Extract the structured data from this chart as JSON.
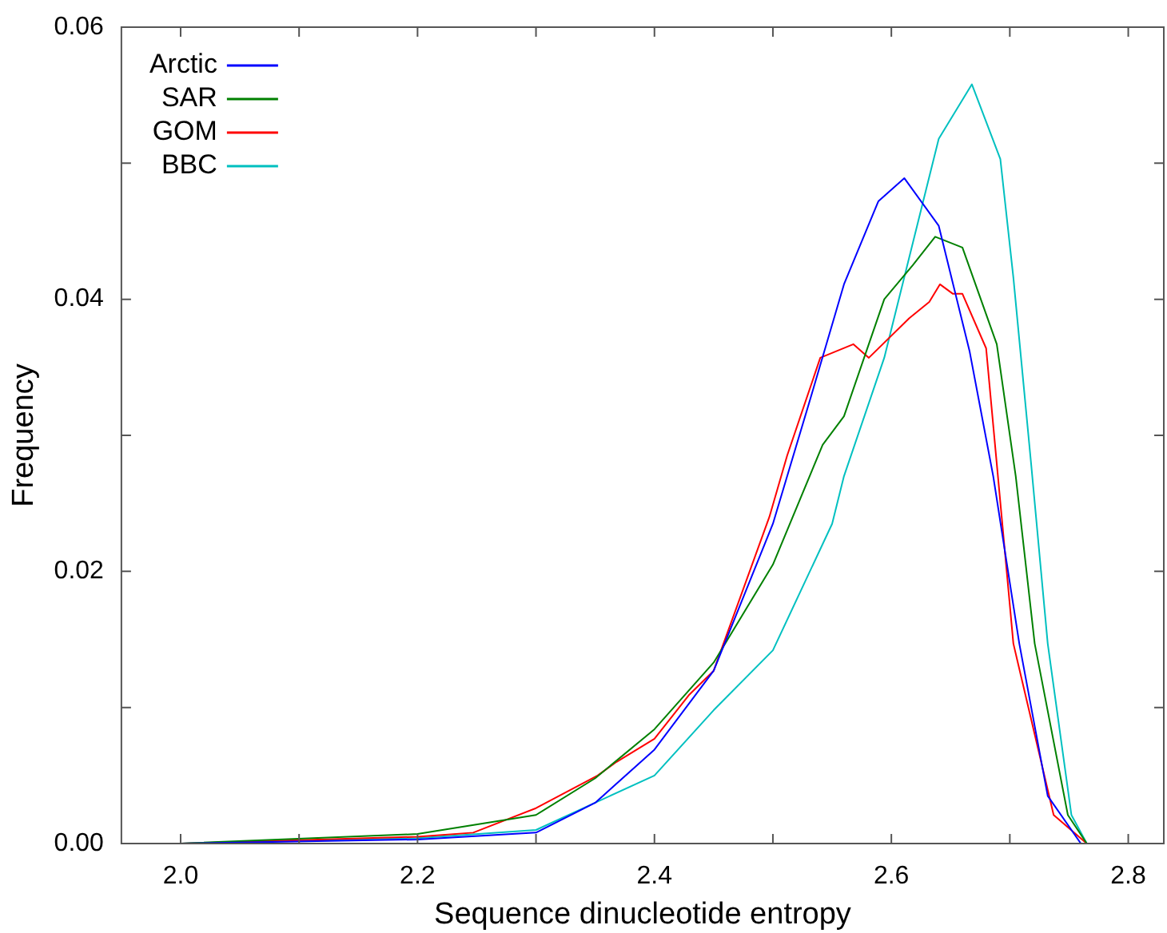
{
  "chart_data": {
    "type": "line",
    "xlabel": "Sequence dinucleotide entropy",
    "ylabel": "Frequency",
    "xlim": [
      1.95,
      2.83
    ],
    "ylim": [
      0,
      0.06
    ],
    "xticks": [
      {
        "value": 2.0,
        "label": "2.0"
      },
      {
        "value": 2.1,
        "label": null
      },
      {
        "value": 2.2,
        "label": "2.2"
      },
      {
        "value": 2.3,
        "label": null
      },
      {
        "value": 2.4,
        "label": "2.4"
      },
      {
        "value": 2.5,
        "label": null
      },
      {
        "value": 2.6,
        "label": "2.6"
      },
      {
        "value": 2.7,
        "label": null
      },
      {
        "value": 2.8,
        "label": "2.8"
      }
    ],
    "yticks": [
      {
        "value": 0,
        "label": "0.00"
      },
      {
        "value": 0.01,
        "label": null
      },
      {
        "value": 0.02,
        "label": "0.02"
      },
      {
        "value": 0.03,
        "label": null
      },
      {
        "value": 0.04,
        "label": "0.04"
      },
      {
        "value": 0.05,
        "label": null
      },
      {
        "value": 0.06,
        "label": "0.06"
      }
    ],
    "legend": "top left",
    "marker": "none",
    "line_style": "solid",
    "series": [
      {
        "name": "Arctic",
        "color": "#0000ff",
        "x": [
          2.0,
          2.2,
          2.3,
          2.35,
          2.4,
          2.45,
          2.5,
          2.532,
          2.56,
          2.589,
          2.611,
          2.64,
          2.666,
          2.686,
          2.708,
          2.732,
          2.76
        ],
        "values": [
          0,
          0.0003,
          0.0008,
          0.003,
          0.0069,
          0.0127,
          0.0235,
          0.0328,
          0.0411,
          0.0472,
          0.0489,
          0.0454,
          0.0362,
          0.027,
          0.0147,
          0.0035,
          0
        ]
      },
      {
        "name": "SAR",
        "color": "#008000",
        "x": [
          2.0,
          2.2,
          2.3,
          2.35,
          2.4,
          2.45,
          2.5,
          2.542,
          2.56,
          2.594,
          2.618,
          2.637,
          2.66,
          2.689,
          2.705,
          2.721,
          2.749,
          2.765
        ],
        "values": [
          0,
          0.0007,
          0.0021,
          0.0048,
          0.0084,
          0.0133,
          0.0205,
          0.0293,
          0.0314,
          0.04,
          0.0425,
          0.0446,
          0.0438,
          0.0367,
          0.027,
          0.0147,
          0.0021,
          0
        ]
      },
      {
        "name": "GOM",
        "color": "#ff0000",
        "x": [
          2.0,
          2.2,
          2.247,
          2.3,
          2.352,
          2.368,
          2.4,
          2.429,
          2.45,
          2.497,
          2.512,
          2.54,
          2.568,
          2.581,
          2.615,
          2.632,
          2.641,
          2.652,
          2.66,
          2.68,
          2.703,
          2.737,
          2.765
        ],
        "values": [
          0,
          0.0005,
          0.0008,
          0.0026,
          0.005,
          0.006,
          0.0077,
          0.0109,
          0.0127,
          0.024,
          0.0285,
          0.0357,
          0.0367,
          0.0357,
          0.0386,
          0.0398,
          0.0411,
          0.0404,
          0.0404,
          0.0364,
          0.0147,
          0.0021,
          0
        ]
      },
      {
        "name": "BBC",
        "color": "#00c0c0",
        "x": [
          2.0,
          2.2,
          2.3,
          2.35,
          2.4,
          2.45,
          2.5,
          2.55,
          2.56,
          2.594,
          2.64,
          2.668,
          2.692,
          2.703,
          2.718,
          2.732,
          2.752,
          2.765
        ],
        "values": [
          0,
          0.0004,
          0.001,
          0.003,
          0.005,
          0.0098,
          0.0142,
          0.0235,
          0.027,
          0.0357,
          0.0518,
          0.0558,
          0.0503,
          0.0416,
          0.0279,
          0.0147,
          0.0021,
          0
        ]
      }
    ]
  }
}
